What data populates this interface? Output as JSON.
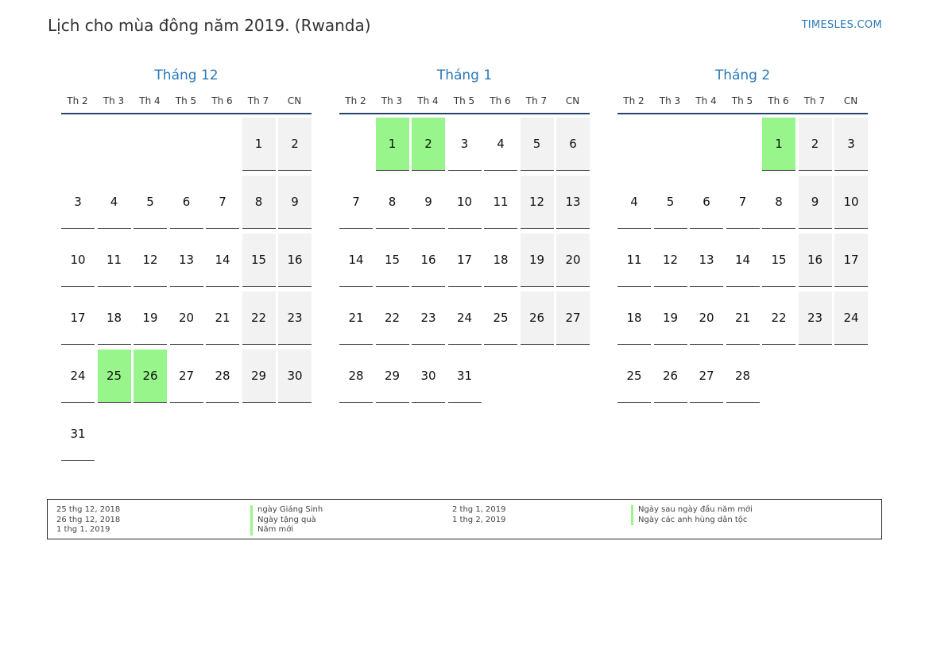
{
  "header": {
    "title": "Lịch cho mùa đông năm 2019. (Rwanda)",
    "site": "TIMESLES.COM"
  },
  "weekdays": [
    "Th 2",
    "Th 3",
    "Th 4",
    "Th 5",
    "Th 6",
    "Th 7",
    "CN"
  ],
  "colors": {
    "accent": "#2a7ab8",
    "holiday": "#97f58b",
    "weekend": "#f2f2f2",
    "rule": "#24456b"
  },
  "months": [
    {
      "name": "Tháng 12",
      "first_weekday": 5,
      "days": 31,
      "holidays": [
        25,
        26
      ]
    },
    {
      "name": "Tháng 1",
      "first_weekday": 1,
      "days": 31,
      "holidays": [
        1,
        2
      ]
    },
    {
      "name": "Tháng 2",
      "first_weekday": 4,
      "days": 28,
      "holidays": [
        1
      ]
    }
  ],
  "legend": {
    "left": [
      {
        "date": "25 thg 12, 2018",
        "name": "ngày Giáng Sinh"
      },
      {
        "date": "26 thg 12, 2018",
        "name": "Ngày tặng quà"
      },
      {
        "date": "1 thg 1, 2019",
        "name": "Năm mới"
      }
    ],
    "right": [
      {
        "date": "2 thg 1, 2019",
        "name": "Ngày sau ngày đầu năm mới"
      },
      {
        "date": "1 thg 2, 2019",
        "name": "Ngày các anh hùng dân tộc"
      }
    ]
  }
}
